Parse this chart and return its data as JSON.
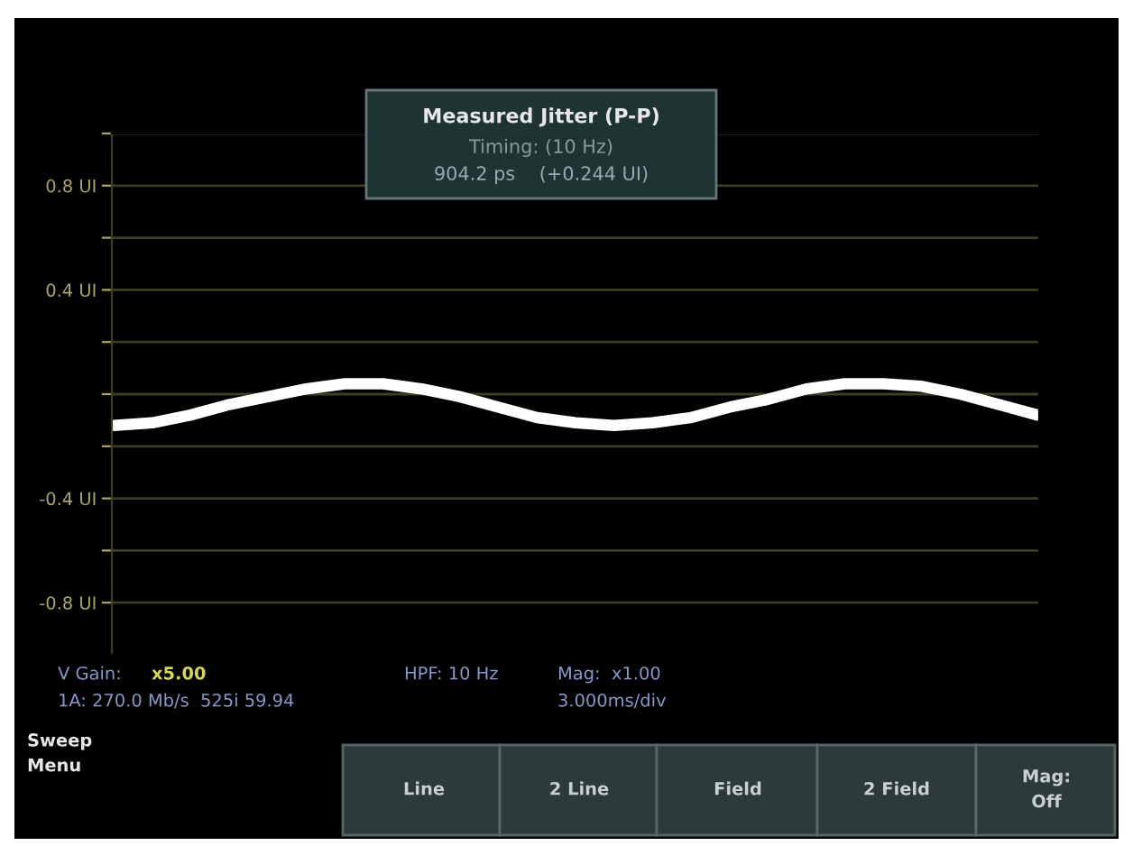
{
  "chart_data": {
    "type": "line",
    "categories": [
      null,
      null,
      null,
      null,
      null,
      null,
      null,
      null,
      null,
      null,
      null,
      null,
      null,
      null,
      null,
      null,
      null,
      null,
      null,
      null,
      null,
      null,
      null,
      null,
      null
    ],
    "series": [
      {
        "color": "#ffffff",
        "values": [
          -0.12,
          -0.11,
          -0.08,
          -0.04,
          -0.01,
          0.02,
          0.04,
          0.04,
          0.02,
          -0.01,
          -0.05,
          -0.09,
          -0.11,
          -0.12,
          -0.11,
          -0.09,
          -0.05,
          -0.02,
          0.02,
          0.04,
          0.04,
          0.03,
          0.0,
          -0.04,
          -0.08
        ]
      }
    ],
    "ylim": [
      -1.0,
      1.0
    ],
    "yticks": [
      {
        "value": 1.0,
        "label": null
      },
      {
        "value": 0.8,
        "label": "0.8 UI"
      },
      {
        "value": 0.6,
        "label": null
      },
      {
        "value": 0.4,
        "label": "0.4 UI"
      },
      {
        "value": 0.2,
        "label": null
      },
      {
        "value": 0.0,
        "label": null
      },
      {
        "value": -0.2,
        "label": null
      },
      {
        "value": -0.4,
        "label": "-0.4 UI"
      },
      {
        "value": -0.6,
        "label": null
      },
      {
        "value": -0.8,
        "label": "-0.8 UI"
      }
    ],
    "tick_labels": "y",
    "grid": "y",
    "annotations": [
      "Measured Jitter (P-P)",
      "Timing: (10 Hz)",
      "904.2 ps    (+0.244 UI)",
      "V Gain:",
      "x5.00",
      "1A: 270.0 Mb/s  525i 59.94",
      "HPF: 10 Hz",
      "Mag:  x1.00",
      "3.000ms/div",
      "Sweep\nMenu",
      "Line",
      "2 Line",
      "Field",
      "2 Field",
      "Mag:\nOff"
    ]
  }
}
